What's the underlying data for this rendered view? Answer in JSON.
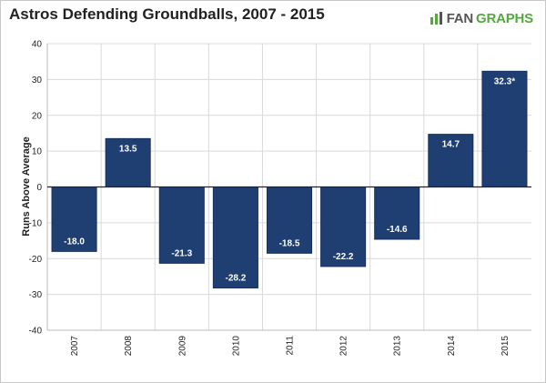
{
  "header": {
    "title": "Astros Defending Groundballs, 2007 - 2015",
    "logo_prefix": "FAN",
    "logo_suffix": "GRAPHS"
  },
  "colors": {
    "bar": "#1f3f73",
    "bar_stroke": "#15305c",
    "grid": "#d9d9d9",
    "axis": "#222222",
    "logo_green": "#53a93f"
  },
  "chart_data": {
    "type": "bar",
    "title": "Astros Defending Groundballs, 2007 - 2015",
    "xlabel": "",
    "ylabel": "Runs Above Average",
    "ylim": [
      -40,
      40
    ],
    "yticks": [
      40,
      30,
      20,
      10,
      0,
      -10,
      -20,
      -30,
      -40
    ],
    "grid": true,
    "categories": [
      "2007",
      "2008",
      "2009",
      "2010",
      "2011",
      "2012",
      "2013",
      "2014",
      "2015"
    ],
    "values": [
      -18.0,
      13.5,
      -21.3,
      -28.2,
      -18.5,
      -22.2,
      -14.6,
      14.7,
      32.3
    ],
    "data_labels": [
      "-18.0",
      "13.5",
      "-21.3",
      "-28.2",
      "-18.5",
      "-22.2",
      "-14.6",
      "14.7",
      "32.3*"
    ]
  }
}
